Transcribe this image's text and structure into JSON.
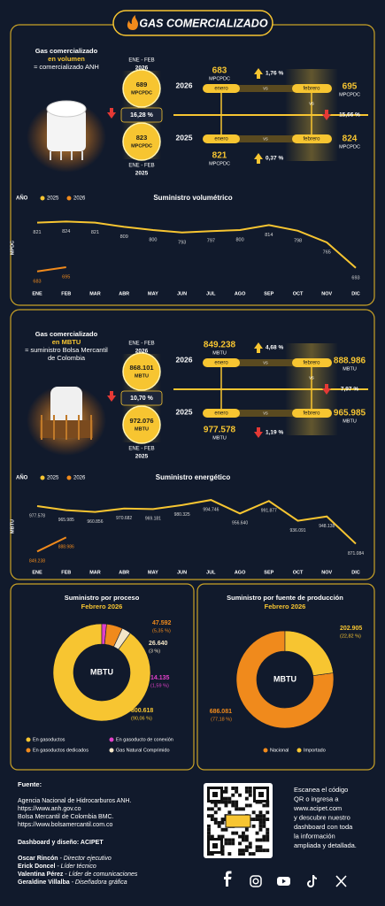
{
  "header": {
    "title": "GAS COMERCIALIZADO"
  },
  "sections": [
    {
      "title": [
        "Gas comercializado",
        "en volumen",
        "≈ comercializado ANH"
      ],
      "summary": {
        "top_period": [
          "ENE - FEB",
          "2026"
        ],
        "top_value": "689",
        "unit": "MPCPDC",
        "change": "16,28 %",
        "change_direction": "down",
        "bottom_value": "823",
        "bottom_period": [
          "ENE - FEB",
          "2025"
        ]
      },
      "comparison": {
        "labels": {
          "enero": "enero",
          "vs": "vs",
          "febrero": "febrero"
        },
        "unit": "MPCPDC",
        "rows": [
          {
            "year": "2026",
            "enero": "683",
            "febrero": "695",
            "change": "1,76 %",
            "direction": "up"
          },
          {
            "year": "2025",
            "enero": "821",
            "febrero": "824",
            "change": "0,37 %",
            "direction": "up"
          }
        ],
        "year_change": "15,66 %",
        "year_change_direction": "down"
      }
    },
    {
      "title": [
        "Gas comercializado",
        "en MBTU",
        "≈ suministro Bolsa Mercantil",
        "de Colombia"
      ],
      "summary": {
        "top_period": [
          "ENE - FEB",
          "2026"
        ],
        "top_value": "868.101",
        "unit": "MBTU",
        "change": "10,70 %",
        "change_direction": "down",
        "bottom_value": "972.076",
        "bottom_period": [
          "ENE - FEB",
          "2025"
        ]
      },
      "comparison": {
        "labels": {
          "enero": "enero",
          "vs": "vs",
          "febrero": "febrero"
        },
        "unit": "MBTU",
        "rows": [
          {
            "year": "2026",
            "enero": "849.238",
            "febrero": "888.986",
            "change": "4,68 %",
            "direction": "up"
          },
          {
            "year": "2025",
            "enero": "977.578",
            "febrero": "965.985",
            "change": "1,19 %",
            "direction": "down"
          }
        ],
        "year_change": "7,97 %",
        "year_change_direction": "down"
      }
    }
  ],
  "chart_data": [
    {
      "type": "line",
      "title": "Suministro volumétrico",
      "y_label": "MPDC",
      "legend_title": "AÑO",
      "categories": [
        "ENE",
        "FEB",
        "MAR",
        "ABR",
        "MAY",
        "JUN",
        "JUL",
        "AGO",
        "SEP",
        "OCT",
        "NOV",
        "DIC"
      ],
      "series": [
        {
          "name": "2025",
          "color": "#f7c531",
          "values": [
            821,
            824,
            821,
            809,
            800,
            793,
            797,
            800,
            814,
            798,
            765,
            693
          ]
        },
        {
          "name": "2026",
          "color": "#f08a1c",
          "values": [
            683,
            695,
            null,
            null,
            null,
            null,
            null,
            null,
            null,
            null,
            null,
            null
          ]
        }
      ],
      "ylim": [
        650,
        850
      ]
    },
    {
      "type": "line",
      "title": "Suministro energético",
      "y_label": "MBTU",
      "legend_title": "AÑO",
      "categories": [
        "ENE",
        "FEB",
        "MAR",
        "ABR",
        "MAY",
        "JUN",
        "JUL",
        "AGO",
        "SEP",
        "OCT",
        "NOV",
        "DIC"
      ],
      "series": [
        {
          "name": "2025",
          "color": "#f7c531",
          "values": [
            977578,
            965985,
            960856,
            970682,
            969181,
            980325,
            994746,
            956640,
            991877,
            936091,
            948138,
            871084
          ],
          "value_labels": [
            "977.578",
            "965.985",
            "960.856",
            "970.682",
            "969.181",
            "980.325",
            "994.746",
            "956.640",
            "991.877",
            "936.091",
            "948.138",
            "871.084"
          ]
        },
        {
          "name": "2026",
          "color": "#f08a1c",
          "values": [
            849238,
            888986,
            null,
            null,
            null,
            null,
            null,
            null,
            null,
            null,
            null,
            null
          ],
          "value_labels": [
            "849.238",
            "888.986",
            null,
            null,
            null,
            null,
            null,
            null,
            null,
            null,
            null,
            null
          ]
        }
      ],
      "ylim": [
        820000,
        1020000
      ]
    },
    {
      "type": "donut",
      "title": "Suministro por proceso",
      "subtitle": "Febrero 2026",
      "center_label": "MBTU",
      "categories": [
        "En gasoductos",
        "En gasoducto de conexión",
        "En gasoductos dedicados",
        "Gas Natural Comprimido"
      ],
      "colors": [
        "#f7c531",
        "#e040c8",
        "#f08a1c",
        "#f3e6c8"
      ],
      "values": [
        800618,
        14135,
        47592,
        26640
      ],
      "value_labels": [
        "800.618",
        "14.135",
        "47.592",
        "26.640"
      ],
      "shares": [
        90.06,
        1.59,
        5.35,
        3
      ],
      "share_labels": [
        "(90,06 %)",
        "(1,59 %)",
        "(5,35 %)",
        "(3 %)"
      ]
    },
    {
      "type": "donut",
      "title": "Suministro por fuente de producción",
      "subtitle": "Febrero 2026",
      "center_label": "MBTU",
      "categories": [
        "Nacional",
        "Importado"
      ],
      "colors": [
        "#f08a1c",
        "#f7c531"
      ],
      "values": [
        686081,
        202905
      ],
      "value_labels": [
        "686.081",
        "202.905"
      ],
      "shares": [
        77.18,
        22.82
      ],
      "share_labels": [
        "(77,18 %)",
        "(22,82 %)"
      ]
    }
  ],
  "footer": {
    "source_title": "Fuente:",
    "sources": [
      "Agencia Nacional de Hidrocarburos ANH.",
      "https://www.anh.gov.co",
      "Bolsa Mercantil de Colombia BMC.",
      "https://www.bolsamercantil.com.co"
    ],
    "credits_title": "Dashboard y diseño: ACIPET",
    "people": [
      {
        "name": "Oscar Rincón",
        "role": " - Director ejecutivo"
      },
      {
        "name": "Erick Doncel",
        "role": " - Líder técnico"
      },
      {
        "name": "Valentina Pérez",
        "role": " - Líder de comunicaciones"
      },
      {
        "name": "Geraldine Villalba",
        "role": " - Diseñadora gráfica"
      }
    ],
    "qr_text": [
      "Escanea el código",
      "QR o ingresa a",
      "www.acipet.com",
      "y descubre nuestro",
      "dashboard con toda",
      "la información",
      "ampliada y detallada."
    ]
  }
}
